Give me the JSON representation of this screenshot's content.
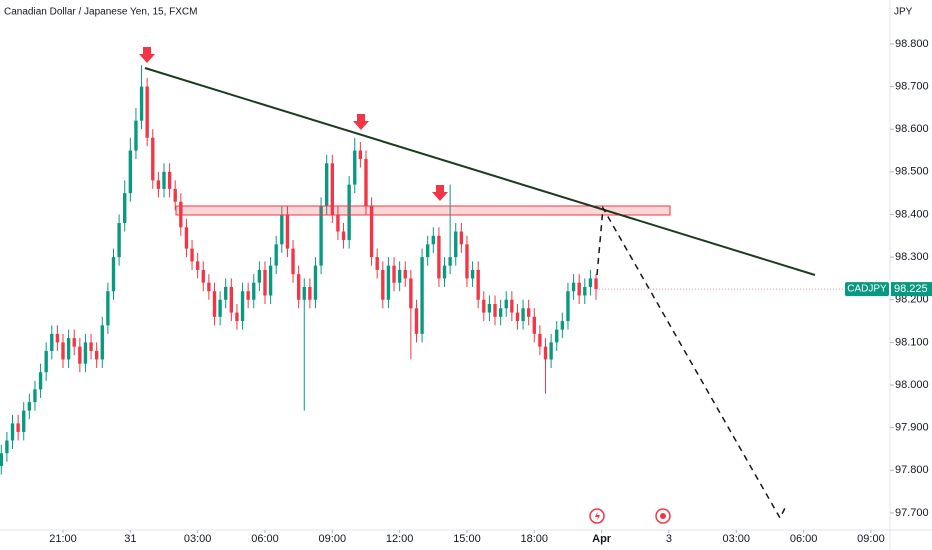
{
  "chart_data": {
    "type": "candlestick",
    "title": "Canadian Dollar / Japanese Yen, 15, FXCM",
    "y_axis_label": "JPY",
    "symbol": "CADJPY",
    "last_price": 98.225,
    "up_color": "#089981",
    "down_color": "#f23645",
    "grid": false,
    "xlim": [
      -0.23,
      158.4
    ],
    "ylim": [
      97.66,
      98.903
    ],
    "yticks": [
      {
        "value": 98.8,
        "label": "98.800"
      },
      {
        "value": 98.7,
        "label": "98.700"
      },
      {
        "value": 98.6,
        "label": "98.600"
      },
      {
        "value": 98.5,
        "label": "98.500"
      },
      {
        "value": 98.4,
        "label": "98.400"
      },
      {
        "value": 98.3,
        "label": "98.300"
      },
      {
        "value": 98.2,
        "label": "98.200"
      },
      {
        "value": 98.1,
        "label": "98.100"
      },
      {
        "value": 98.0,
        "label": "98.000"
      },
      {
        "value": 97.9,
        "label": "97.900"
      },
      {
        "value": 97.8,
        "label": "97.800"
      },
      {
        "value": 97.7,
        "label": "97.700"
      }
    ],
    "xticks": [
      {
        "value": 11,
        "label": "21:00"
      },
      {
        "value": 23,
        "label": "31"
      },
      {
        "value": 35,
        "label": "03:00"
      },
      {
        "value": 47,
        "label": "06:00"
      },
      {
        "value": 59,
        "label": "09:00"
      },
      {
        "value": 71,
        "label": "12:00"
      },
      {
        "value": 83,
        "label": "15:00"
      },
      {
        "value": 95,
        "label": "18:00"
      },
      {
        "value": 107,
        "label": "Apr"
      },
      {
        "value": 119,
        "label": "3"
      },
      {
        "value": 131,
        "label": "03:00"
      },
      {
        "value": 143,
        "label": "06:00"
      },
      {
        "value": 155,
        "label": "09:00"
      }
    ],
    "candles": [
      [
        97.81,
        97.86,
        97.79,
        97.84
      ],
      [
        97.84,
        97.89,
        97.82,
        97.87
      ],
      [
        97.87,
        97.93,
        97.85,
        97.91
      ],
      [
        97.91,
        97.93,
        97.87,
        97.89
      ],
      [
        97.89,
        97.96,
        97.87,
        97.94
      ],
      [
        97.94,
        97.98,
        97.92,
        97.96
      ],
      [
        97.96,
        98.01,
        97.94,
        97.99
      ],
      [
        97.99,
        98.05,
        97.97,
        98.03
      ],
      [
        98.03,
        98.1,
        98.01,
        98.08
      ],
      [
        98.08,
        98.14,
        98.06,
        98.12
      ],
      [
        98.12,
        98.14,
        98.08,
        98.1
      ],
      [
        98.1,
        98.12,
        98.04,
        98.06
      ],
      [
        98.06,
        98.13,
        98.04,
        98.11
      ],
      [
        98.11,
        98.13,
        98.07,
        98.09
      ],
      [
        98.09,
        98.11,
        98.03,
        98.05
      ],
      [
        98.05,
        98.12,
        98.03,
        98.1
      ],
      [
        98.1,
        98.12,
        98.06,
        98.08
      ],
      [
        98.08,
        98.1,
        98.04,
        98.06
      ],
      [
        98.06,
        98.16,
        98.04,
        98.14
      ],
      [
        98.14,
        98.24,
        98.12,
        98.22
      ],
      [
        98.22,
        98.32,
        98.2,
        98.3
      ],
      [
        98.3,
        98.4,
        98.28,
        98.38
      ],
      [
        98.38,
        98.48,
        98.36,
        98.45
      ],
      [
        98.45,
        98.58,
        98.43,
        98.55
      ],
      [
        98.55,
        98.65,
        98.53,
        98.62
      ],
      [
        98.62,
        98.75,
        98.6,
        98.7
      ],
      [
        98.7,
        98.72,
        98.56,
        98.58
      ],
      [
        98.58,
        98.6,
        98.46,
        98.48
      ],
      [
        98.48,
        98.5,
        98.44,
        98.46
      ],
      [
        98.46,
        98.52,
        98.44,
        98.5
      ],
      [
        98.5,
        98.52,
        98.44,
        98.46
      ],
      [
        98.46,
        98.48,
        98.41,
        98.43
      ],
      [
        98.43,
        98.45,
        98.35,
        98.37
      ],
      [
        98.37,
        98.39,
        98.3,
        98.32
      ],
      [
        98.32,
        98.34,
        98.27,
        98.29
      ],
      [
        98.29,
        98.31,
        98.25,
        98.27
      ],
      [
        98.27,
        98.29,
        98.22,
        98.24
      ],
      [
        98.24,
        98.26,
        98.2,
        98.22
      ],
      [
        98.22,
        98.24,
        98.14,
        98.16
      ],
      [
        98.16,
        98.22,
        98.14,
        98.2
      ],
      [
        98.2,
        98.25,
        98.18,
        98.23
      ],
      [
        98.23,
        98.25,
        98.15,
        98.17
      ],
      [
        98.17,
        98.19,
        98.13,
        98.15
      ],
      [
        98.15,
        98.24,
        98.13,
        98.22
      ],
      [
        98.22,
        98.24,
        98.18,
        98.2
      ],
      [
        98.2,
        98.26,
        98.18,
        98.24
      ],
      [
        98.24,
        98.29,
        98.22,
        98.27
      ],
      [
        98.27,
        98.29,
        98.19,
        98.21
      ],
      [
        98.21,
        98.3,
        98.19,
        98.28
      ],
      [
        98.28,
        98.35,
        98.26,
        98.33
      ],
      [
        98.33,
        98.42,
        98.31,
        98.4
      ],
      [
        98.4,
        98.42,
        98.3,
        98.32
      ],
      [
        98.32,
        98.34,
        98.24,
        98.26
      ],
      [
        98.26,
        98.28,
        98.18,
        98.2
      ],
      [
        98.2,
        98.25,
        97.94,
        98.23
      ],
      [
        98.23,
        98.25,
        98.18,
        98.2
      ],
      [
        98.2,
        98.3,
        98.18,
        98.28
      ],
      [
        98.28,
        98.44,
        98.26,
        98.42
      ],
      [
        98.42,
        98.54,
        98.4,
        98.52
      ],
      [
        98.52,
        98.54,
        98.38,
        98.4
      ],
      [
        98.4,
        98.42,
        98.34,
        98.36
      ],
      [
        98.36,
        98.38,
        98.32,
        98.34
      ],
      [
        98.34,
        98.49,
        98.32,
        98.47
      ],
      [
        98.47,
        98.58,
        98.45,
        98.55
      ],
      [
        98.55,
        98.57,
        98.51,
        98.53
      ],
      [
        98.53,
        98.55,
        98.4,
        98.42
      ],
      [
        98.42,
        98.44,
        98.28,
        98.3
      ],
      [
        98.3,
        98.32,
        98.25,
        98.27
      ],
      [
        98.27,
        98.29,
        98.18,
        98.2
      ],
      [
        98.2,
        98.3,
        98.18,
        98.28
      ],
      [
        98.28,
        98.3,
        98.22,
        98.24
      ],
      [
        98.24,
        98.29,
        98.22,
        98.27
      ],
      [
        98.27,
        98.29,
        98.23,
        98.25
      ],
      [
        98.25,
        98.27,
        98.06,
        98.18
      ],
      [
        98.18,
        98.2,
        98.1,
        98.12
      ],
      [
        98.12,
        98.32,
        98.1,
        98.3
      ],
      [
        98.3,
        98.35,
        98.28,
        98.33
      ],
      [
        98.33,
        98.37,
        98.31,
        98.35
      ],
      [
        98.35,
        98.37,
        98.23,
        98.25
      ],
      [
        98.25,
        98.3,
        98.23,
        98.28
      ],
      [
        98.28,
        98.47,
        98.26,
        98.3
      ],
      [
        98.3,
        98.38,
        98.28,
        98.36
      ],
      [
        98.36,
        98.38,
        98.31,
        98.33
      ],
      [
        98.33,
        98.35,
        98.23,
        98.25
      ],
      [
        98.25,
        98.29,
        98.23,
        98.27
      ],
      [
        98.27,
        98.29,
        98.18,
        98.2
      ],
      [
        98.2,
        98.22,
        98.15,
        98.17
      ],
      [
        98.17,
        98.21,
        98.15,
        98.19
      ],
      [
        98.19,
        98.21,
        98.14,
        98.16
      ],
      [
        98.16,
        98.2,
        98.14,
        98.18
      ],
      [
        98.18,
        98.22,
        98.16,
        98.2
      ],
      [
        98.2,
        98.22,
        98.15,
        98.17
      ],
      [
        98.17,
        98.19,
        98.13,
        98.15
      ],
      [
        98.15,
        98.2,
        98.13,
        98.18
      ],
      [
        98.18,
        98.2,
        98.14,
        98.16
      ],
      [
        98.16,
        98.18,
        98.1,
        98.12
      ],
      [
        98.12,
        98.14,
        98.07,
        98.09
      ],
      [
        98.09,
        98.11,
        97.98,
        98.06
      ],
      [
        98.06,
        98.12,
        98.04,
        98.1
      ],
      [
        98.1,
        98.15,
        98.08,
        98.13
      ],
      [
        98.13,
        98.17,
        98.11,
        98.15
      ],
      [
        98.15,
        98.24,
        98.13,
        98.22
      ],
      [
        98.22,
        98.26,
        98.2,
        98.24
      ],
      [
        98.24,
        98.26,
        98.19,
        98.21
      ],
      [
        98.21,
        98.25,
        98.19,
        98.23
      ],
      [
        98.23,
        98.27,
        98.21,
        98.25
      ],
      [
        98.25,
        98.26,
        98.2,
        98.225
      ]
    ]
  }
}
